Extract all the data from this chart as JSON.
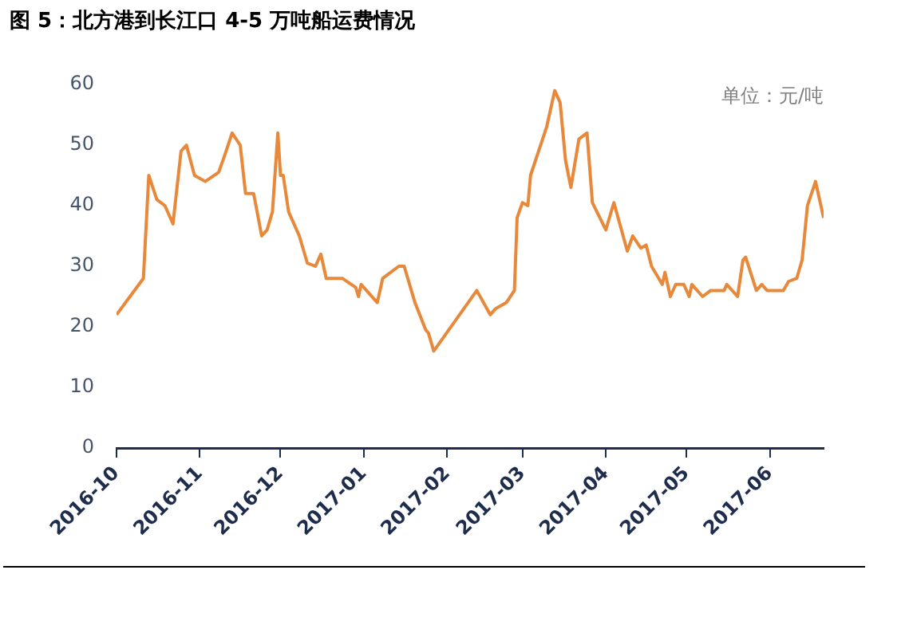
{
  "chart_data": {
    "type": "line",
    "title": "图 5：北方港到长江口 4-5 万吨船运费情况",
    "annotations": [
      "单位：元/吨"
    ],
    "x": [
      "2016-10-01",
      "2016-10-11",
      "2016-10-13",
      "2016-10-16",
      "2016-10-19",
      "2016-10-22",
      "2016-10-25",
      "2016-10-27",
      "2016-10-30",
      "2016-11-03",
      "2016-11-08",
      "2016-11-10",
      "2016-11-13",
      "2016-11-16",
      "2016-11-18",
      "2016-11-21",
      "2016-11-24",
      "2016-11-26",
      "2016-11-28",
      "2016-11-30",
      "2016-12-01",
      "2016-12-02",
      "2016-12-04",
      "2016-12-08",
      "2016-12-11",
      "2016-12-14",
      "2016-12-16",
      "2016-12-18",
      "2016-12-24",
      "2016-12-29",
      "2016-12-30",
      "2016-12-31",
      "2017-01-06",
      "2017-01-08",
      "2017-01-14",
      "2017-01-16",
      "2017-01-20",
      "2017-01-24",
      "2017-01-25",
      "2017-01-27",
      "2017-02-12",
      "2017-02-17",
      "2017-02-19",
      "2017-02-23",
      "2017-02-26",
      "2017-02-27",
      "2017-03-01",
      "2017-03-03",
      "2017-03-04",
      "2017-03-10",
      "2017-03-12",
      "2017-03-13",
      "2017-03-15",
      "2017-03-17",
      "2017-03-19",
      "2017-03-22",
      "2017-03-25",
      "2017-03-27",
      "2017-04-01",
      "2017-04-04",
      "2017-04-09",
      "2017-04-11",
      "2017-04-14",
      "2017-04-16",
      "2017-04-18",
      "2017-04-22",
      "2017-04-23",
      "2017-04-25",
      "2017-04-27",
      "2017-04-30",
      "2017-05-02",
      "2017-05-03",
      "2017-05-07",
      "2017-05-10",
      "2017-05-15",
      "2017-05-16",
      "2017-05-20",
      "2017-05-22",
      "2017-05-23",
      "2017-05-27",
      "2017-05-29",
      "2017-05-31",
      "2017-06-06",
      "2017-06-08",
      "2017-06-11",
      "2017-06-13",
      "2017-06-15",
      "2017-06-18",
      "2017-06-21"
    ],
    "series": [
      {
        "color": "#e8883a",
        "values": [
          22,
          28,
          45,
          41,
          40,
          37,
          49,
          50,
          45,
          44,
          45.5,
          48,
          52,
          50,
          42,
          42,
          35,
          36,
          39,
          52,
          45,
          45,
          39,
          35,
          30.5,
          30,
          32,
          28,
          28,
          26.5,
          25,
          27,
          24,
          28,
          30,
          30,
          24,
          19.5,
          19,
          16,
          26,
          22,
          23,
          24,
          26,
          38,
          40.5,
          40,
          45,
          53,
          57,
          59,
          57,
          47.5,
          43,
          51,
          52,
          40.5,
          36,
          40.5,
          32.5,
          35,
          33,
          33.5,
          30,
          27,
          29,
          25,
          27,
          27,
          25,
          27,
          25,
          26,
          26,
          27,
          25,
          31,
          31.5,
          26,
          27,
          26,
          26,
          27.5,
          28,
          31,
          40,
          44,
          38
        ]
      }
    ],
    "xlim": [
      "2016-10-01",
      "2017-06-21"
    ],
    "xticks": [
      "2016-10",
      "2016-11",
      "2016-12",
      "2017-01",
      "2017-02",
      "2017-03",
      "2017-04",
      "2017-05",
      "2017-06"
    ],
    "ylim": [
      0,
      60
    ],
    "yticks": [
      0,
      10,
      20,
      30,
      40,
      50,
      60
    ],
    "grid": false,
    "legend": false,
    "marker": "none",
    "line_style": "solid"
  }
}
